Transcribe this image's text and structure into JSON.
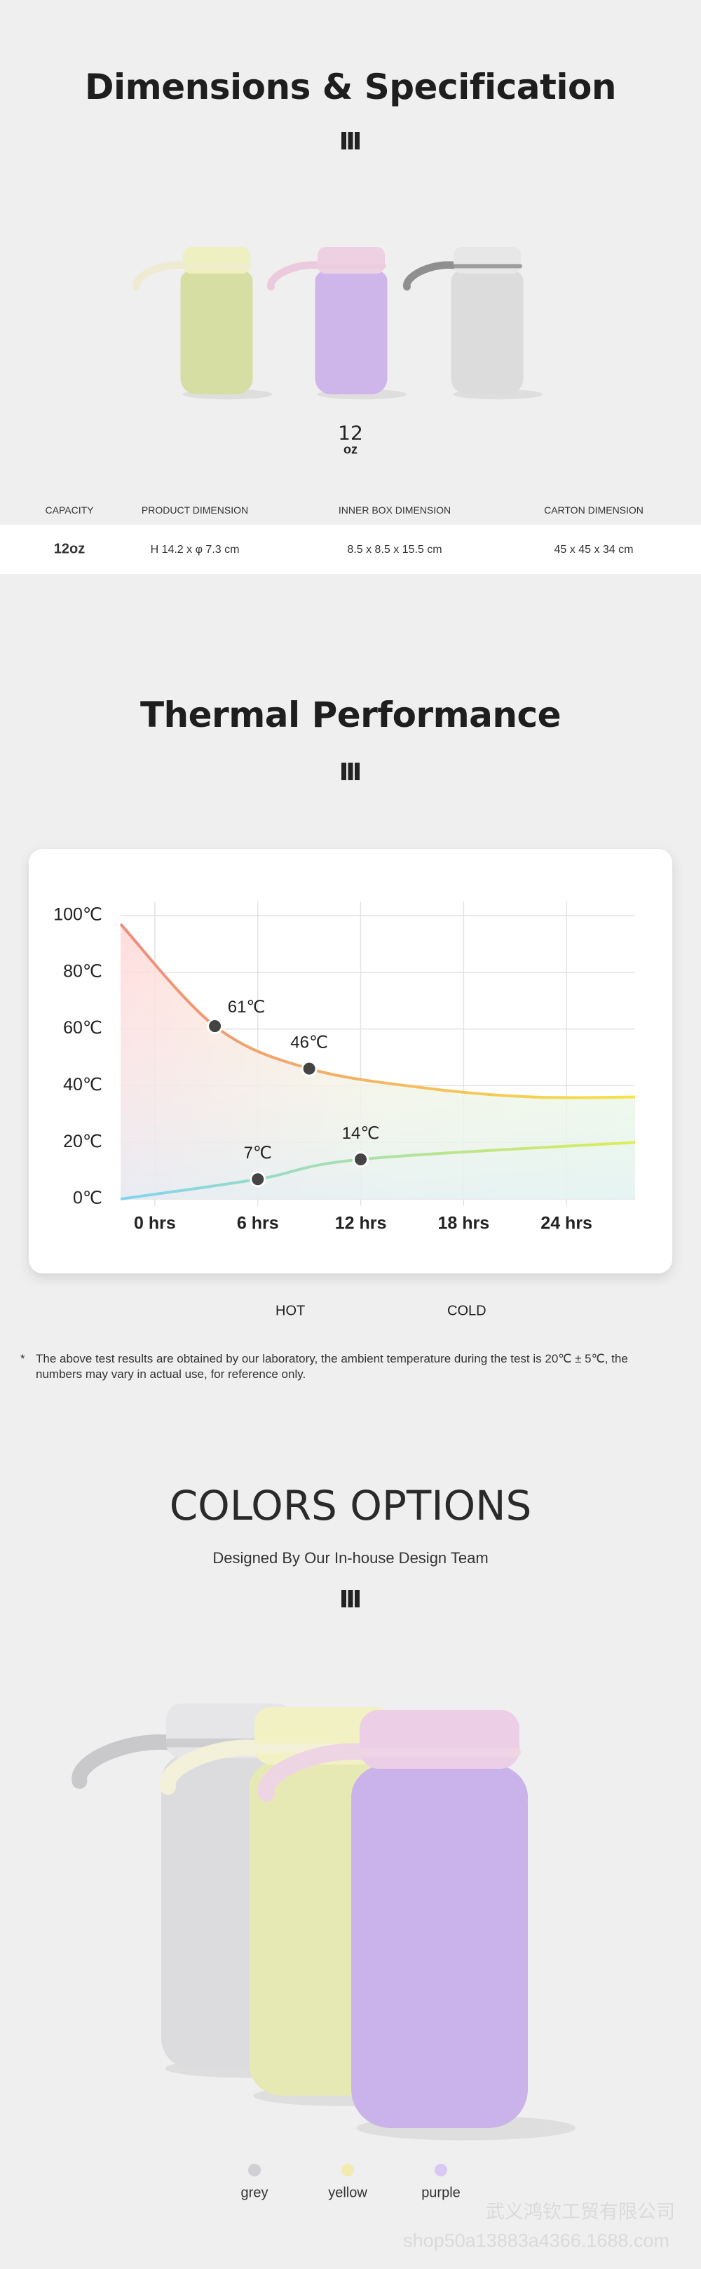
{
  "dimensions": {
    "title": "Dimensions & Specification",
    "capacity": {
      "number": "12",
      "unit": "oz"
    },
    "table": {
      "headers": [
        "CAPACITY",
        "PRODUCT DIMENSION",
        "INNER BOX DIMENSION",
        "CARTON DIMENSION"
      ],
      "rows": [
        [
          "12oz",
          "H 14.2 x φ 7.3 cm",
          "8.5 x 8.5 x 15.5 cm",
          "45 x 45 x 34 cm"
        ]
      ]
    }
  },
  "thermal": {
    "title": "Thermal Performance",
    "chart": {
      "type": "line",
      "xlim": [
        -2,
        28
      ],
      "ylim": [
        0,
        100
      ],
      "xticks": [
        {
          "value": 0,
          "label": "0 hrs"
        },
        {
          "value": 6,
          "label": "6 hrs"
        },
        {
          "value": 12,
          "label": "12 hrs"
        },
        {
          "value": 18,
          "label": "18 hrs"
        },
        {
          "value": 24,
          "label": "24 hrs"
        }
      ],
      "yticks": [
        {
          "value": 0,
          "label": "0℃"
        },
        {
          "value": 20,
          "label": "20℃"
        },
        {
          "value": 40,
          "label": "40℃"
        },
        {
          "value": 60,
          "label": "60℃"
        },
        {
          "value": 80,
          "label": "80℃"
        },
        {
          "value": 100,
          "label": "100℃"
        }
      ],
      "grid": true,
      "series": [
        {
          "name": "HOT",
          "colors": [
            "#ef8b7b",
            "#f6e446"
          ],
          "x": [
            -2,
            3.5,
            9,
            16,
            22,
            28
          ],
          "values": [
            97,
            61,
            46,
            39,
            36,
            36
          ],
          "value_labels": [
            null,
            "61℃",
            "46℃",
            null,
            null,
            null
          ]
        },
        {
          "name": "COLD",
          "colors": [
            "#7fd4f2",
            "#dcee55"
          ],
          "x": [
            -2,
            6,
            12,
            28
          ],
          "values": [
            0,
            7,
            14,
            20
          ],
          "value_labels": [
            null,
            "7℃",
            "14℃",
            null
          ]
        }
      ]
    },
    "note_marker": "*",
    "note": "The above test results are obtained by our laboratory, the ambient temperature during the test is 20℃ ± 5℃, the numbers may vary in actual use, for reference only."
  },
  "colors": {
    "title": "COLORS OPTIONS",
    "subtitle": "Designed By Our In-house Design Team",
    "options": [
      {
        "name": "grey",
        "color": "#cfcfd4"
      },
      {
        "name": "yellow",
        "color": "#f3eab0"
      },
      {
        "name": "purple",
        "color": "#d8c9f4"
      }
    ]
  },
  "watermark": [
    "武义鸿钦工贸有限公司",
    "shop50a13883a4366.1688.com"
  ]
}
